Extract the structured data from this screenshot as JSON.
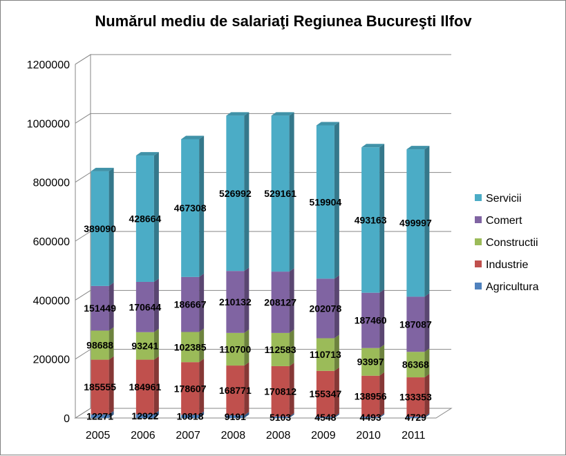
{
  "chart_data": {
    "type": "bar",
    "stacked": true,
    "three_d": true,
    "title": "Numărul mediu de salariaţi Regiunea Bucureşti Ilfov",
    "xlabel": "",
    "ylabel": "",
    "categories": [
      "2005",
      "2006",
      "2007",
      "2008",
      "2008",
      "2009",
      "2010",
      "2011"
    ],
    "ylim": [
      0,
      1200000
    ],
    "yticks": [
      "0",
      "200000",
      "400000",
      "600000",
      "800000",
      "1000000",
      "1200000"
    ],
    "yticks_values": [
      0,
      200000,
      400000,
      600000,
      800000,
      1000000,
      1200000
    ],
    "grid": true,
    "legend_position": "right",
    "series": [
      {
        "name": "Agricultura",
        "color": "#4f81bd",
        "values": [
          12271,
          12922,
          10818,
          9191,
          5103,
          4548,
          4493,
          4729
        ]
      },
      {
        "name": "Industrie",
        "color": "#c0504d",
        "values": [
          185555,
          184961,
          178607,
          168771,
          170812,
          155347,
          138956,
          133353
        ]
      },
      {
        "name": "Constructii",
        "color": "#9bbb59",
        "values": [
          98688,
          93241,
          102385,
          110700,
          112583,
          110713,
          93997,
          86368
        ]
      },
      {
        "name": "Comert",
        "color": "#8064a2",
        "values": [
          151449,
          170644,
          186667,
          210132,
          208127,
          202078,
          187460,
          187087
        ]
      },
      {
        "name": "Servicii",
        "color": "#4bacc6",
        "values": [
          389090,
          428664,
          467308,
          526992,
          529161,
          519904,
          493163,
          499997
        ]
      }
    ]
  }
}
